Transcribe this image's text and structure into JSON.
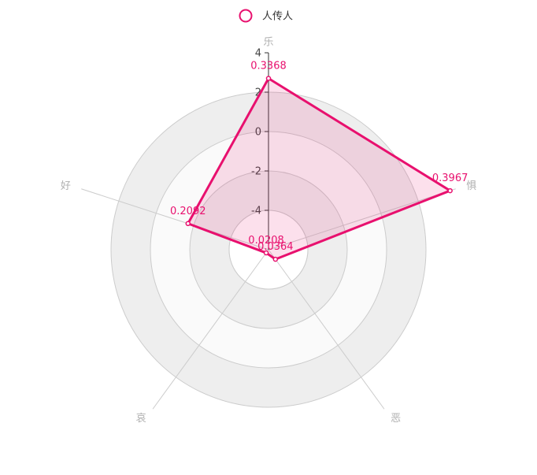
{
  "chart_data": {
    "type": "radar",
    "legend": {
      "position": "top-center",
      "entries": [
        "人传人"
      ]
    },
    "indicators": [
      "乐",
      "惧",
      "恶",
      "哀",
      "好"
    ],
    "scale": {
      "min": -6,
      "max": 4,
      "ticks": [
        "4",
        "2",
        "0",
        "-2",
        "-4"
      ]
    },
    "series": [
      {
        "name": "人传人",
        "color": "#e8106e",
        "values": [
          2.7,
          3.7,
          -5.4,
          -5.8,
          -1.7
        ],
        "labels": [
          "0.3368",
          "0.3967",
          "0.0364",
          "0.0208",
          "0.2092"
        ]
      }
    ],
    "grid": true
  }
}
